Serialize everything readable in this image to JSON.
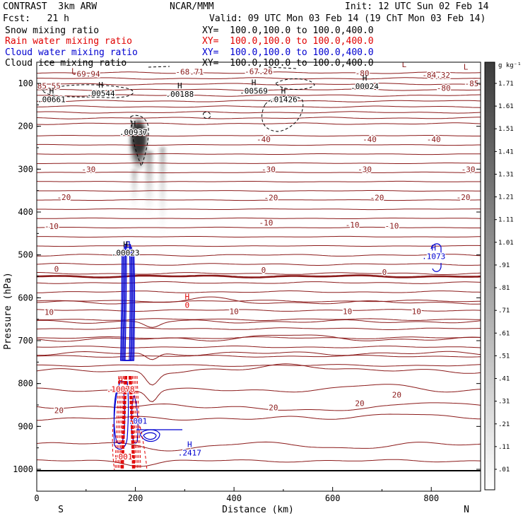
{
  "header": {
    "left_title": "CONTRAST  3km ARW",
    "center_title": "NCAR/MMM",
    "init": "Init: 12 UTC Sun 02 Feb 14",
    "fcst": "Fcst:   21 h",
    "valid": "Valid: 09 UTC Mon 03 Feb 14 (19 ChT Mon 03 Feb 14)"
  },
  "colors": {
    "temperature": "#8b1a1a",
    "rain": "#e00000",
    "cloud_water": "#0000d0",
    "cloud_ice": "#000000",
    "snow_shade": "#505050"
  },
  "chart_data": {
    "type": "cross-section",
    "xlabel": "Distance (km)",
    "ylabel": "Pressure (hPa)",
    "xlim": [
      0,
      900
    ],
    "ylim": [
      1050,
      50
    ],
    "x_ticks": [
      "0",
      "200",
      "400",
      "600",
      "800"
    ],
    "y_ticks": [
      "100",
      "200",
      "300",
      "400",
      "500",
      "600",
      "700",
      "800",
      "900",
      "1000"
    ],
    "end_labels": {
      "left": "S",
      "right": "N"
    },
    "fields": [
      {
        "name": "Snow mixing ratio",
        "xy": "",
        "color": "#000000",
        "style": "shaded"
      },
      {
        "name": "Rain water mixing ratio",
        "xy": "XY=  100.0,100.0 to 100.0,400.0",
        "color": "#e00000",
        "style": "dashed"
      },
      {
        "name": "Cloud water mixing ratio",
        "xy": "XY=  100.0,100.0 to 100.0,400.0",
        "color": "#0000d0",
        "style": "solid"
      },
      {
        "name": "Cloud ice mixing ratio",
        "xy": "XY=  100.0,100.0 to 100.0,400.0",
        "color": "#000000",
        "style": "dashed"
      }
    ],
    "xy_top": "XY=  100.0,100.0 to 100.0,400.0",
    "colorbar": {
      "unit": "g kg⁻¹",
      "ticks": [
        "1.71",
        "1.61",
        "1.51",
        "1.41",
        "1.31",
        "1.21",
        "1.11",
        "1.01",
        ".91",
        ".81",
        ".71",
        ".61",
        ".51",
        ".41",
        ".31",
        ".21",
        ".11",
        ".01"
      ]
    },
    "temperature_labels": [
      {
        "x": 100,
        "p": 78,
        "text": "-69.94"
      },
      {
        "x": 310,
        "p": 73,
        "text": "-68.71"
      },
      {
        "x": 450,
        "p": 72,
        "text": "-67.26"
      },
      {
        "x": 660,
        "p": 76,
        "text": "-80"
      },
      {
        "x": 810,
        "p": 80,
        "text": "-84.32"
      },
      {
        "x": 20,
        "p": 106,
        "text": "-85.55"
      },
      {
        "x": 825,
        "p": 111,
        "text": "-80"
      },
      {
        "x": 882,
        "p": 100,
        "text": "-85"
      },
      {
        "x": 460,
        "p": 230,
        "text": "-40"
      },
      {
        "x": 675,
        "p": 230,
        "text": "-40"
      },
      {
        "x": 805,
        "p": 230,
        "text": "-40"
      },
      {
        "x": 105,
        "p": 300,
        "text": "-30"
      },
      {
        "x": 470,
        "p": 300,
        "text": "-30"
      },
      {
        "x": 665,
        "p": 300,
        "text": "-30"
      },
      {
        "x": 875,
        "p": 300,
        "text": "-30"
      },
      {
        "x": 55,
        "p": 365,
        "text": "-20"
      },
      {
        "x": 475,
        "p": 366,
        "text": "-20"
      },
      {
        "x": 690,
        "p": 366,
        "text": "-20"
      },
      {
        "x": 865,
        "p": 365,
        "text": "-20"
      },
      {
        "x": 30,
        "p": 433,
        "text": "-10"
      },
      {
        "x": 465,
        "p": 425,
        "text": "-10"
      },
      {
        "x": 640,
        "p": 430,
        "text": "-10"
      },
      {
        "x": 720,
        "p": 432,
        "text": "-10"
      },
      {
        "x": 40,
        "p": 533,
        "text": "0"
      },
      {
        "x": 460,
        "p": 535,
        "text": "0"
      },
      {
        "x": 705,
        "p": 540,
        "text": "0"
      },
      {
        "x": 25,
        "p": 633,
        "text": "10"
      },
      {
        "x": 400,
        "p": 632,
        "text": "10"
      },
      {
        "x": 630,
        "p": 632,
        "text": "10"
      },
      {
        "x": 770,
        "p": 632,
        "text": "10"
      },
      {
        "x": 45,
        "p": 862,
        "text": "20"
      },
      {
        "x": 480,
        "p": 856,
        "text": "20"
      },
      {
        "x": 655,
        "p": 846,
        "text": "20"
      },
      {
        "x": 730,
        "p": 826,
        "text": "20"
      }
    ],
    "extrema_labels": [
      {
        "x": 75,
        "p": 86,
        "sym": "L",
        "val": ""
      },
      {
        "x": 295,
        "p": 55,
        "sym": "H",
        "val": ""
      },
      {
        "x": 745,
        "p": 70,
        "sym": "L",
        "val": ""
      },
      {
        "x": 870,
        "p": 76,
        "sym": "L",
        "val": ""
      },
      {
        "x": 30,
        "p": 132,
        "sym": "H",
        "val": ".00661"
      },
      {
        "x": 130,
        "p": 118,
        "sym": "H",
        "val": ".00544"
      },
      {
        "x": 290,
        "p": 120,
        "sym": "H",
        "val": ".00188"
      },
      {
        "x": 440,
        "p": 112,
        "sym": "H",
        "val": ".00569"
      },
      {
        "x": 500,
        "p": 132,
        "sym": "H",
        "val": ".01426"
      },
      {
        "x": 665,
        "p": 102,
        "sym": "H",
        "val": ".00024"
      },
      {
        "x": 196,
        "p": 209,
        "sym": "H",
        "val": ".00937"
      },
      {
        "x": 180,
        "p": 490,
        "sym": "H",
        "val": ".00023"
      },
      {
        "x": 305,
        "p": 612,
        "sym": "H",
        "val": "0"
      },
      {
        "x": 805,
        "p": 498,
        "sym": "H",
        "val": ".1073"
      },
      {
        "x": 170,
        "p": 808,
        "sym": "H",
        "val": ".10078"
      },
      {
        "x": 205,
        "p": 882,
        "sym": "",
        "val": ".001"
      },
      {
        "x": 310,
        "p": 956,
        "sym": "H",
        "val": ".2417"
      },
      {
        "x": 175,
        "p": 965,
        "sym": "",
        "val": ".001"
      }
    ]
  }
}
